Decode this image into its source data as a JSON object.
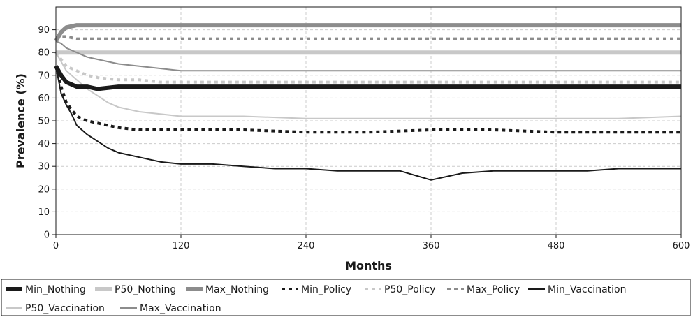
{
  "chart_data": {
    "type": "line",
    "title": "",
    "xlabel": "Months",
    "ylabel": "Prevalence (%)",
    "xlim": [
      0,
      600
    ],
    "ylim": [
      0,
      100
    ],
    "xticks": [
      0,
      120,
      240,
      360,
      480,
      600
    ],
    "yticks": [
      0,
      10,
      20,
      30,
      40,
      50,
      60,
      70,
      80,
      90
    ],
    "grid": true,
    "legend_position": "bottom",
    "series": [
      {
        "name": "Min_Nothing",
        "color": "#1a1a1a",
        "style": "solid-thick",
        "x": [
          0,
          5,
          10,
          20,
          30,
          40,
          60,
          80,
          100,
          120,
          180,
          240,
          300,
          360,
          420,
          480,
          540,
          600
        ],
        "y": [
          74,
          70,
          67,
          65,
          65,
          64,
          65,
          65,
          65,
          65,
          65,
          65,
          65,
          65,
          65,
          65,
          65,
          65
        ]
      },
      {
        "name": "P50_Nothing",
        "color": "#c8c8c8",
        "style": "solid-thick",
        "x": [
          0,
          600
        ],
        "y": [
          80,
          80
        ]
      },
      {
        "name": "Max_Nothing",
        "color": "#8c8c8c",
        "style": "solid-thick",
        "x": [
          0,
          5,
          10,
          20,
          40,
          60,
          120,
          240,
          360,
          480,
          600
        ],
        "y": [
          85,
          89,
          91,
          92,
          92,
          92,
          92,
          92,
          92,
          92,
          92
        ]
      },
      {
        "name": "Min_Policy",
        "color": "#1a1a1a",
        "style": "dotted",
        "x": [
          0,
          5,
          10,
          20,
          30,
          40,
          60,
          80,
          100,
          120,
          180,
          240,
          300,
          360,
          420,
          480,
          540,
          600
        ],
        "y": [
          74,
          65,
          58,
          52,
          50,
          49,
          47,
          46,
          46,
          46,
          46,
          45,
          45,
          46,
          46,
          45,
          45,
          45
        ]
      },
      {
        "name": "P50_Policy",
        "color": "#c8c8c8",
        "style": "dotted",
        "x": [
          0,
          5,
          10,
          20,
          30,
          40,
          60,
          80,
          100,
          120,
          180,
          240,
          300,
          360,
          420,
          480,
          540,
          600
        ],
        "y": [
          80,
          77,
          74,
          72,
          70,
          69,
          68,
          68,
          67,
          67,
          67,
          67,
          67,
          67,
          67,
          67,
          67,
          67
        ]
      },
      {
        "name": "Max_Policy",
        "color": "#8c8c8c",
        "style": "dotted",
        "x": [
          0,
          5,
          10,
          20,
          30,
          40,
          60,
          80,
          100,
          120,
          180,
          240,
          300,
          360,
          420,
          480,
          540,
          600
        ],
        "y": [
          86,
          87,
          87,
          86,
          86,
          86,
          86,
          86,
          86,
          86,
          86,
          86,
          86,
          86,
          86,
          86,
          86,
          86
        ]
      },
      {
        "name": "Min_Vaccination",
        "color": "#1a1a1a",
        "style": "solid",
        "x": [
          0,
          5,
          10,
          15,
          20,
          30,
          40,
          50,
          60,
          80,
          100,
          120,
          150,
          180,
          210,
          240,
          270,
          300,
          330,
          360,
          390,
          420,
          450,
          480,
          510,
          540,
          570,
          600
        ],
        "y": [
          74,
          62,
          57,
          53,
          48,
          44,
          41,
          38,
          36,
          34,
          32,
          31,
          31,
          30,
          29,
          29,
          28,
          28,
          28,
          24,
          27,
          28,
          28,
          28,
          28,
          29,
          29,
          29
        ]
      },
      {
        "name": "P50_Vaccination",
        "color": "#c8c8c8",
        "style": "solid",
        "x": [
          0,
          5,
          10,
          20,
          30,
          40,
          50,
          60,
          70,
          80,
          100,
          120,
          150,
          180,
          240,
          300,
          360,
          420,
          480,
          540,
          600
        ],
        "y": [
          80,
          76,
          72,
          68,
          64,
          61,
          58,
          56,
          55,
          54,
          53,
          52,
          52,
          52,
          51,
          51,
          51,
          51,
          51,
          51,
          52
        ]
      },
      {
        "name": "Max_Vaccination",
        "color": "#8c8c8c",
        "style": "solid",
        "x": [
          0,
          5,
          10,
          20,
          30,
          40,
          60,
          80,
          100,
          120,
          180,
          240,
          300,
          360,
          420,
          480,
          540,
          600
        ],
        "y": [
          85,
          84,
          82,
          80,
          78,
          77,
          75,
          74,
          73,
          72,
          72,
          72,
          72,
          72,
          72,
          72,
          72,
          72
        ]
      }
    ]
  }
}
